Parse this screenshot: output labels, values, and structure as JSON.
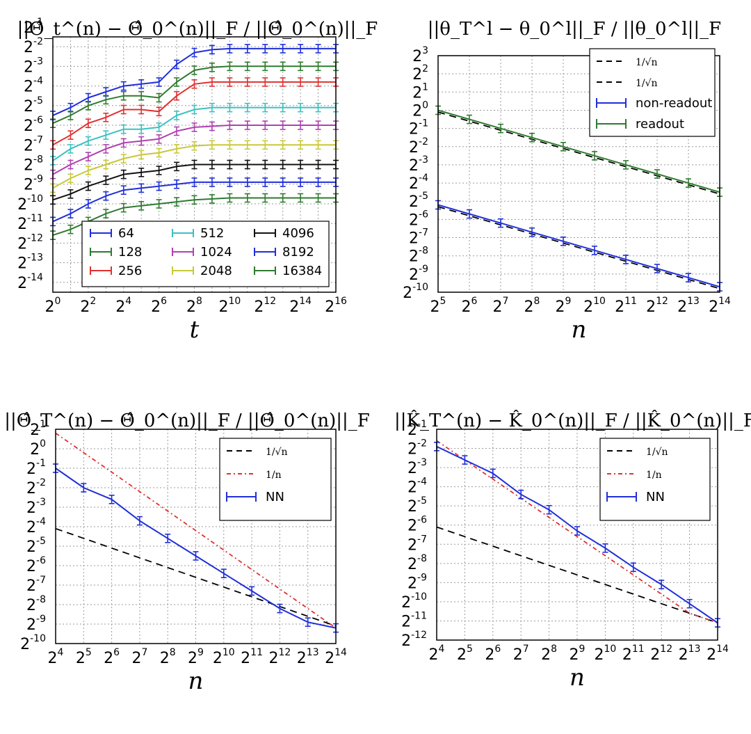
{
  "chart_data": [
    {
      "type": "line",
      "title": "||Θ̂_t^(n) − Θ̂_0^(n)||_F / ||Θ̂_0^(n)||_F",
      "xlabel": "t",
      "ylabel": "",
      "log_base": 2,
      "x_log2_range": [
        0,
        16
      ],
      "y_log2_range": [
        -14.5,
        -1.5
      ],
      "x_ticks": [
        0,
        2,
        4,
        6,
        8,
        10,
        12,
        14,
        16
      ],
      "y_ticks": [
        -1,
        -2,
        -3,
        -4,
        -5,
        -6,
        -7,
        -8,
        -9,
        -10,
        -11,
        -12,
        -13,
        -14
      ],
      "grid": true,
      "legend": {
        "position": "lower-right",
        "columns": 3
      },
      "x_log2": [
        0,
        1,
        2,
        3,
        4,
        5,
        6,
        7,
        8,
        9,
        10,
        11,
        12,
        13,
        14,
        15,
        16
      ],
      "series": [
        {
          "name": "64",
          "color": "#1f2fd8",
          "y_log2": [
            -5.5,
            -5.1,
            -4.6,
            -4.3,
            -4.0,
            -3.9,
            -3.8,
            -2.9,
            -2.3,
            -2.15,
            -2.1,
            -2.1,
            -2.1,
            -2.1,
            -2.1,
            -2.1,
            -2.1
          ]
        },
        {
          "name": "128",
          "color": "#2f7a2f",
          "y_log2": [
            -5.9,
            -5.5,
            -5.0,
            -4.7,
            -4.5,
            -4.5,
            -4.6,
            -3.8,
            -3.2,
            -3.05,
            -3.0,
            -3.0,
            -3.0,
            -3.0,
            -3.0,
            -3.0,
            -3.0
          ]
        },
        {
          "name": "256",
          "color": "#e03030",
          "y_log2": [
            -7.0,
            -6.5,
            -5.9,
            -5.6,
            -5.2,
            -5.2,
            -5.3,
            -4.5,
            -3.9,
            -3.8,
            -3.8,
            -3.8,
            -3.8,
            -3.8,
            -3.8,
            -3.8,
            -3.8
          ]
        },
        {
          "name": "512",
          "color": "#3cc0c0",
          "y_log2": [
            -7.8,
            -7.2,
            -6.8,
            -6.5,
            -6.2,
            -6.2,
            -6.1,
            -5.5,
            -5.2,
            -5.1,
            -5.1,
            -5.1,
            -5.1,
            -5.1,
            -5.1,
            -5.1,
            -5.1
          ]
        },
        {
          "name": "1024",
          "color": "#b040b0",
          "y_log2": [
            -8.5,
            -8.0,
            -7.6,
            -7.2,
            -6.9,
            -6.8,
            -6.7,
            -6.3,
            -6.1,
            -6.05,
            -6.0,
            -6.0,
            -6.0,
            -6.0,
            -6.0,
            -6.0,
            -6.0
          ]
        },
        {
          "name": "2048",
          "color": "#c8c83a",
          "y_log2": [
            -9.2,
            -8.7,
            -8.3,
            -8.0,
            -7.7,
            -7.5,
            -7.4,
            -7.2,
            -7.05,
            -7.0,
            -7.0,
            -7.0,
            -7.0,
            -7.0,
            -7.0,
            -7.0,
            -7.0
          ]
        },
        {
          "name": "4096",
          "color": "#111111",
          "y_log2": [
            -9.8,
            -9.5,
            -9.1,
            -8.8,
            -8.5,
            -8.4,
            -8.3,
            -8.1,
            -8.0,
            -8.0,
            -8.0,
            -8.0,
            -8.0,
            -8.0,
            -8.0,
            -8.0,
            -8.0
          ]
        },
        {
          "name": "8192",
          "color": "#1f2fd8",
          "y_log2": [
            -10.9,
            -10.5,
            -10.0,
            -9.6,
            -9.3,
            -9.2,
            -9.1,
            -9.0,
            -8.9,
            -8.9,
            -8.9,
            -8.9,
            -8.9,
            -8.9,
            -8.9,
            -8.9,
            -8.9
          ]
        },
        {
          "name": "16384",
          "color": "#2f7a2f",
          "y_log2": [
            -11.6,
            -11.3,
            -10.9,
            -10.5,
            -10.2,
            -10.1,
            -10.0,
            -9.9,
            -9.8,
            -9.75,
            -9.7,
            -9.7,
            -9.7,
            -9.7,
            -9.7,
            -9.7,
            -9.7
          ]
        }
      ]
    },
    {
      "type": "line",
      "title": "||θ_T^l − θ_0^l||_F / ||θ_0^l||_F",
      "xlabel": "n",
      "ylabel": "",
      "log_base": 2,
      "x_log2_range": [
        5,
        14
      ],
      "y_log2_range": [
        -10,
        3
      ],
      "x_ticks": [
        5,
        6,
        7,
        8,
        9,
        10,
        11,
        12,
        13,
        14
      ],
      "y_ticks": [
        3,
        2,
        1,
        0,
        -1,
        -2,
        -3,
        -4,
        -5,
        -6,
        -7,
        -8,
        -9,
        -10
      ],
      "grid": true,
      "legend": {
        "position": "top-right"
      },
      "x_log2": [
        5,
        6,
        7,
        8,
        9,
        10,
        11,
        12,
        13,
        14
      ],
      "series": [
        {
          "name": "1/√n",
          "style": "dashed",
          "color": "#000000",
          "y_log2": [
            -0.1,
            -0.6,
            -1.1,
            -1.6,
            -2.1,
            -2.6,
            -3.1,
            -3.6,
            -4.1,
            -4.6
          ]
        },
        {
          "name": "1/√n",
          "style": "dashed",
          "color": "#000000",
          "y_log2": [
            -5.3,
            -5.8,
            -6.3,
            -6.8,
            -7.3,
            -7.8,
            -8.3,
            -8.8,
            -9.3,
            -9.8
          ]
        },
        {
          "name": "non-readout",
          "color": "#1f2fd8",
          "y_log2": [
            -5.2,
            -5.7,
            -6.2,
            -6.7,
            -7.2,
            -7.7,
            -8.2,
            -8.7,
            -9.2,
            -9.7
          ]
        },
        {
          "name": "readout",
          "color": "#2f7a2f",
          "y_log2": [
            0.0,
            -0.5,
            -1.0,
            -1.5,
            -2.0,
            -2.5,
            -3.0,
            -3.5,
            -4.0,
            -4.5
          ]
        }
      ]
    },
    {
      "type": "line",
      "title": "||Θ̂_T^(n) − Θ̂_0^(n)||_F / ||Θ̂_0^(n)||_F",
      "xlabel": "n",
      "ylabel": "",
      "log_base": 2,
      "x_log2_range": [
        4,
        14
      ],
      "y_log2_range": [
        -10,
        1
      ],
      "x_ticks": [
        4,
        5,
        6,
        7,
        8,
        9,
        10,
        11,
        12,
        13,
        14
      ],
      "y_ticks": [
        1,
        0,
        -1,
        -2,
        -3,
        -4,
        -5,
        -6,
        -7,
        -8,
        -9,
        -10
      ],
      "grid": true,
      "legend": {
        "position": "top-right"
      },
      "x_log2": [
        4,
        5,
        6,
        7,
        8,
        9,
        10,
        11,
        12,
        13,
        14
      ],
      "series": [
        {
          "name": "1/√n",
          "style": "dashed",
          "color": "#000000",
          "y_log2": [
            -4.1,
            -4.6,
            -5.1,
            -5.6,
            -6.1,
            -6.6,
            -7.1,
            -7.6,
            -8.1,
            -8.6,
            -9.1
          ]
        },
        {
          "name": "1/n",
          "style": "dashdot",
          "color": "#e03030",
          "y_log2": [
            0.8,
            -0.2,
            -1.2,
            -2.2,
            -3.2,
            -4.2,
            -5.2,
            -6.2,
            -7.2,
            -8.2,
            -9.2
          ]
        },
        {
          "name": "NN",
          "color": "#1f2fd8",
          "y_log2": [
            -1.0,
            -2.0,
            -2.6,
            -3.7,
            -4.6,
            -5.5,
            -6.4,
            -7.3,
            -8.2,
            -8.9,
            -9.2
          ]
        }
      ]
    },
    {
      "type": "line",
      "title": "||K̂_T^(n) − K̂_0^(n)||_F / ||K̂_0^(n)||_F",
      "xlabel": "n",
      "ylabel": "",
      "log_base": 2,
      "x_log2_range": [
        4,
        14
      ],
      "y_log2_range": [
        -12,
        -1
      ],
      "x_ticks": [
        4,
        5,
        6,
        7,
        8,
        9,
        10,
        11,
        12,
        13,
        14
      ],
      "y_ticks": [
        -1,
        -2,
        -3,
        -4,
        -5,
        -6,
        -7,
        -8,
        -9,
        -10,
        -11,
        -12
      ],
      "grid": true,
      "legend": {
        "position": "top-right"
      },
      "x_log2": [
        4,
        5,
        6,
        7,
        8,
        9,
        10,
        11,
        12,
        13,
        14
      ],
      "series": [
        {
          "name": "1/√n",
          "style": "dashed",
          "color": "#000000",
          "y_log2": [
            -6.1,
            -6.6,
            -7.1,
            -7.6,
            -8.1,
            -8.6,
            -9.1,
            -9.6,
            -10.1,
            -10.6,
            -11.1
          ]
        },
        {
          "name": "1/n",
          "style": "dashdot",
          "color": "#e03030",
          "y_log2": [
            -1.6,
            -2.6,
            -3.6,
            -4.6,
            -5.6,
            -6.6,
            -7.6,
            -8.6,
            -9.6,
            -10.6,
            -11.1
          ]
        },
        {
          "name": "NN",
          "color": "#1f2fd8",
          "y_log2": [
            -1.9,
            -2.6,
            -3.3,
            -4.4,
            -5.2,
            -6.3,
            -7.2,
            -8.2,
            -9.1,
            -10.1,
            -11.1
          ]
        }
      ]
    }
  ]
}
